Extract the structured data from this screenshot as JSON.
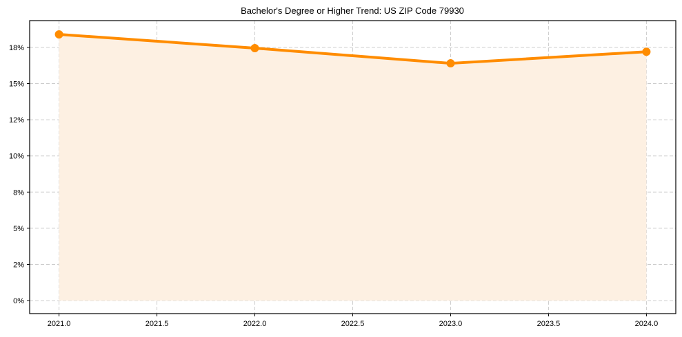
{
  "chart_data": {
    "type": "line",
    "title": "Bachelor's Degree or Higher Trend: US ZIP Code 79930",
    "xlabel": "",
    "ylabel": "",
    "x": [
      2021,
      2022,
      2023,
      2024
    ],
    "series": [
      {
        "name": "Bachelor's Degree or Higher (%)",
        "values": [
          18.4,
          17.45,
          16.4,
          17.2
        ],
        "color": "#ff8c00",
        "fill": "#fdf0e2"
      }
    ],
    "xticks": [
      2021.0,
      2021.5,
      2022.0,
      2022.5,
      2023.0,
      2023.5,
      2024.0
    ],
    "xtick_labels": [
      "2021.0",
      "2021.5",
      "2022.0",
      "2022.5",
      "2023.0",
      "2023.5",
      "2024.0"
    ],
    "yticks": [
      0,
      2.5,
      5,
      7.5,
      10,
      12.5,
      15,
      17.5
    ],
    "ytick_labels": [
      "0%",
      "2%",
      "5%",
      "8%",
      "10%",
      "12%",
      "15%",
      "18%"
    ],
    "xlim": [
      2020.85,
      2024.15
    ],
    "ylim": [
      -0.9,
      19.35
    ],
    "grid": true,
    "grid_style": "dashed",
    "legend": false,
    "area_fill": true
  }
}
